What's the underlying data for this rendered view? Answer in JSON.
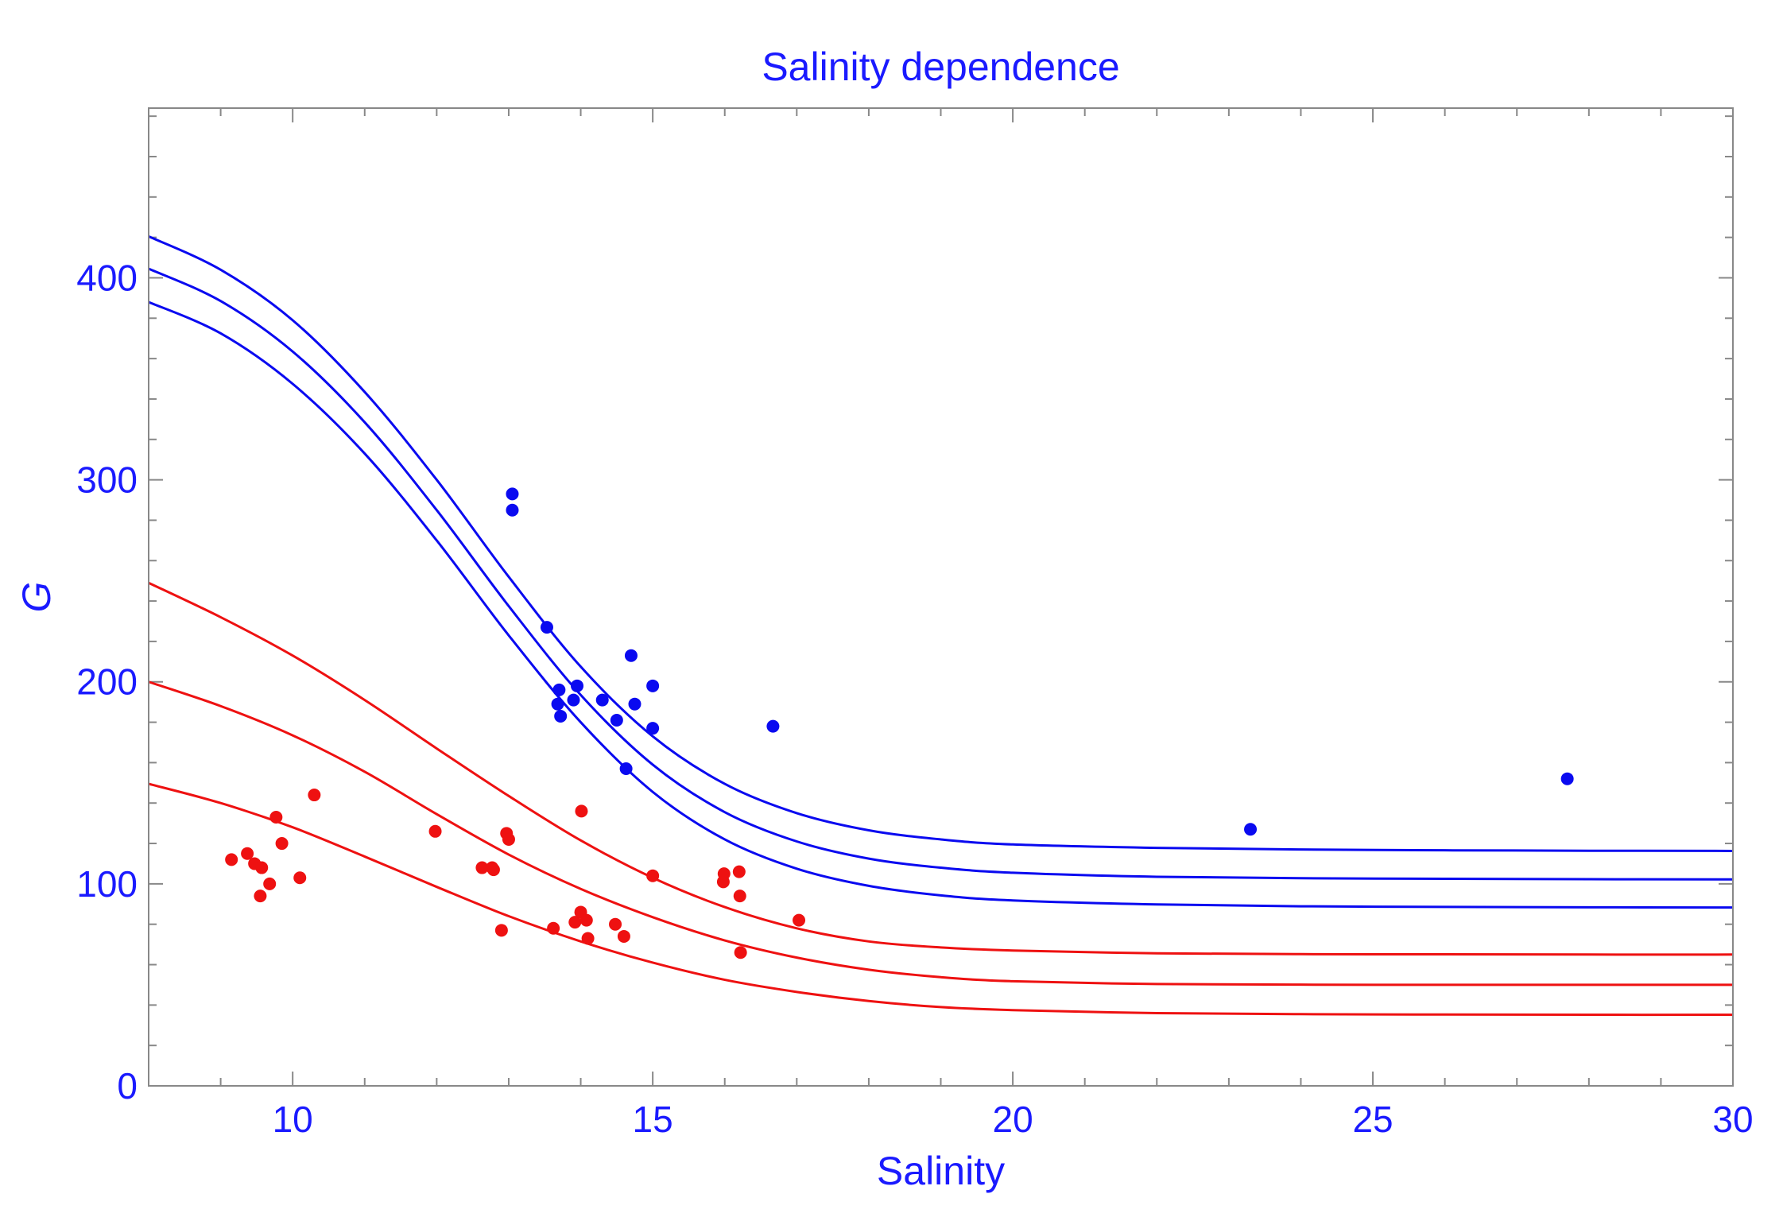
{
  "chart_data": {
    "type": "scatter",
    "title": "Salinity dependence",
    "xlabel": "Salinity",
    "ylabel": "G",
    "xlim": [
      8,
      30
    ],
    "ylim": [
      0,
      484
    ],
    "x_ticks": [
      10,
      15,
      20,
      25,
      30
    ],
    "y_ticks": [
      0,
      100,
      200,
      300,
      400
    ],
    "x_tick_labels": [
      "10",
      "15",
      "20",
      "25",
      "30"
    ],
    "y_tick_labels": [
      "0",
      "100",
      "200",
      "300",
      "400"
    ],
    "x_minor_step": 1,
    "y_minor_step": 20,
    "grid": false,
    "legend": "none",
    "colors": {
      "text": "#1a1aff",
      "blue": "#0a0af0",
      "red": "#ee1111",
      "frame": "#888888"
    },
    "series": [
      {
        "name": "Blue data",
        "kind": "points",
        "color": "#0a0af0",
        "x": [
          13.05,
          13.05,
          13.53,
          13.68,
          13.7,
          13.72,
          13.9,
          13.95,
          14.3,
          14.5,
          14.63,
          14.7,
          14.75,
          15.0,
          15.0,
          16.67,
          23.3,
          27.7
        ],
        "y": [
          293,
          285,
          227,
          189,
          196,
          183,
          191,
          198,
          191,
          181,
          157,
          213,
          189,
          198,
          177,
          178,
          127,
          152
        ]
      },
      {
        "name": "Red data",
        "kind": "points",
        "color": "#ee1111",
        "x": [
          9.15,
          9.37,
          9.47,
          9.55,
          9.57,
          9.68,
          9.77,
          9.85,
          10.1,
          10.3,
          11.98,
          12.63,
          12.77,
          12.79,
          12.9,
          12.97,
          13.0,
          13.62,
          13.92,
          14.0,
          14.01,
          14.08,
          14.1,
          14.48,
          14.6,
          15.0,
          15.98,
          15.99,
          16.2,
          16.21,
          16.22,
          17.03
        ],
        "y": [
          112,
          115,
          110,
          94,
          108,
          100,
          133,
          120,
          103,
          144,
          126,
          108,
          108,
          107,
          77,
          125,
          122,
          78,
          81,
          86,
          136,
          82,
          73,
          80,
          74,
          104,
          101,
          105,
          106,
          94,
          66,
          82
        ]
      },
      {
        "name": "Blue fit",
        "kind": "curve",
        "color": "#0a0af0",
        "x": [
          8,
          9,
          10,
          11,
          12,
          13,
          14,
          15,
          16,
          17,
          18,
          19,
          20,
          22,
          24,
          26,
          28,
          30
        ],
        "y": [
          404.5,
          388.5,
          363.5,
          328.5,
          285,
          237.5,
          193.5,
          159,
          135.5,
          121,
          112.5,
          108,
          105.5,
          103.5,
          102.8,
          102.5,
          102.3,
          102.2
        ]
      },
      {
        "name": "Blue upper band",
        "kind": "curve",
        "color": "#0a0af0",
        "x": [
          8,
          9,
          10,
          11,
          12,
          13,
          14,
          15,
          16,
          17,
          18,
          19,
          20,
          22,
          24,
          26,
          28,
          30
        ],
        "y": [
          420.5,
          404,
          379,
          343.5,
          300,
          252,
          207.5,
          173,
          149.5,
          135,
          126.5,
          122,
          119.5,
          117.8,
          117,
          116.6,
          116.4,
          116.3
        ]
      },
      {
        "name": "Blue lower band",
        "kind": "curve",
        "color": "#0a0af0",
        "x": [
          8,
          9,
          10,
          11,
          12,
          13,
          14,
          15,
          16,
          17,
          18,
          19,
          20,
          22,
          24,
          26,
          28,
          30
        ],
        "y": [
          388,
          372.5,
          347.5,
          313,
          270,
          223,
          180,
          145.5,
          122,
          107.5,
          99,
          94.3,
          91.8,
          89.8,
          88.9,
          88.6,
          88.4,
          88.3
        ]
      },
      {
        "name": "Red fit",
        "kind": "curve",
        "color": "#ee1111",
        "x": [
          8,
          9,
          10,
          11,
          12,
          13,
          14,
          15,
          16,
          17,
          18,
          19,
          20,
          22,
          24,
          26,
          28,
          30
        ],
        "y": [
          200,
          188,
          173.5,
          155.5,
          134.5,
          114.5,
          97.5,
          83.5,
          72,
          63.5,
          57.5,
          53.8,
          51.8,
          50.4,
          50.1,
          50,
          50,
          50
        ]
      },
      {
        "name": "Red upper band",
        "kind": "curve",
        "color": "#ee1111",
        "x": [
          8,
          9,
          10,
          11,
          12,
          13,
          14,
          15,
          16,
          17,
          18,
          19,
          20,
          22,
          24,
          26,
          28,
          30
        ],
        "y": [
          249,
          232,
          213,
          191,
          167,
          143.5,
          121.5,
          103,
          88.5,
          78,
          71.5,
          68.5,
          67,
          65.6,
          65.2,
          65.1,
          65,
          65
        ]
      },
      {
        "name": "Red lower band",
        "kind": "curve",
        "color": "#ee1111",
        "x": [
          8,
          9,
          10,
          11,
          12,
          13,
          14,
          15,
          16,
          17,
          18,
          19,
          20,
          22,
          24,
          26,
          28,
          30
        ],
        "y": [
          149.5,
          140,
          128,
          113.5,
          98.5,
          84,
          71.5,
          61,
          52.5,
          46.5,
          42,
          39,
          37.5,
          36,
          35.5,
          35.3,
          35.2,
          35.2
        ]
      }
    ]
  }
}
